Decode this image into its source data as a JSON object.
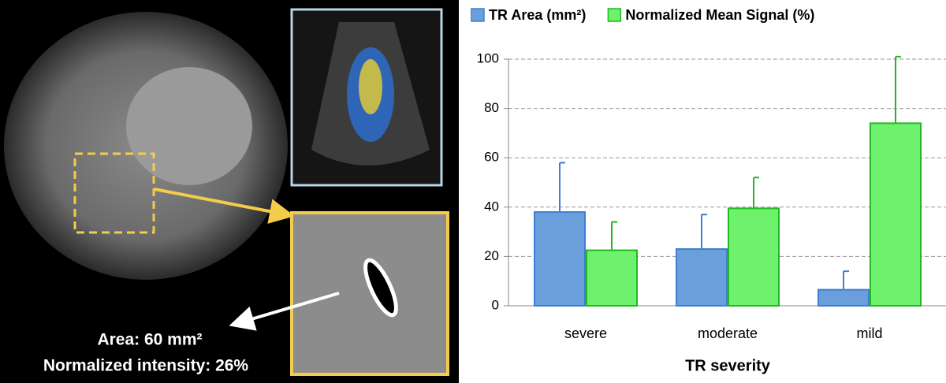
{
  "image_panel": {
    "area_label": "Area: 60 mm²",
    "intensity_label": "Normalized intensity: 26%"
  },
  "chart_data": {
    "type": "bar",
    "x_label": "TR severity",
    "categories": [
      "severe",
      "moderate",
      "mild"
    ],
    "series": [
      {
        "name": "TR Area (mm²)",
        "color": "#6a9fdc",
        "edge": "#3f7fd0",
        "values": [
          38,
          23,
          6.5
        ],
        "errors": [
          20,
          14,
          7.5
        ]
      },
      {
        "name": "Normalized Mean Signal (%)",
        "color": "#6ef26e",
        "edge": "#22b822",
        "values": [
          22.5,
          39.5,
          74
        ],
        "errors": [
          11.5,
          12.5,
          27
        ]
      }
    ],
    "ylim": [
      0,
      100
    ],
    "yticks": [
      0,
      20,
      40,
      60,
      80,
      100
    ],
    "grid": true,
    "legend": "top"
  }
}
